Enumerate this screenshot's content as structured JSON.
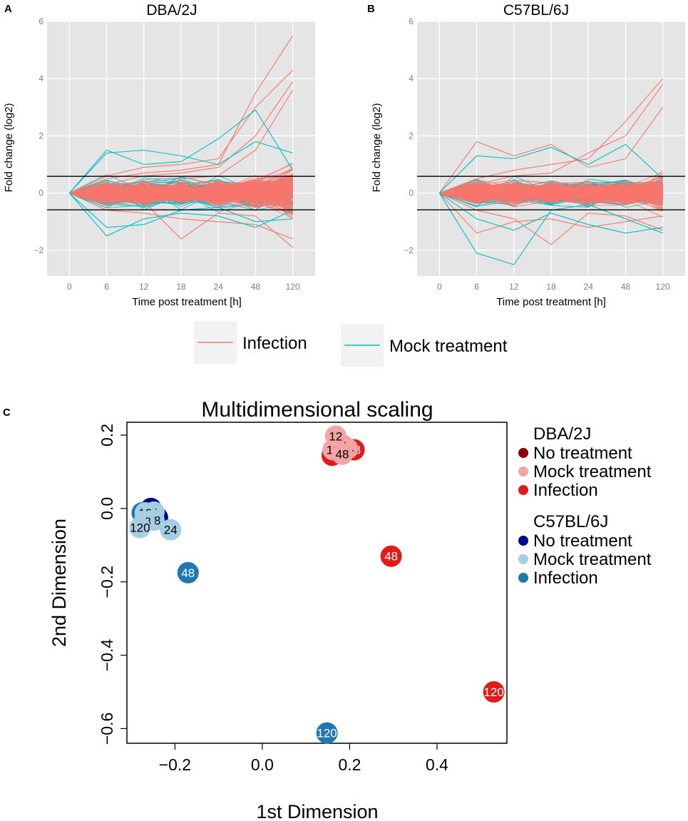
{
  "colors": {
    "infection_line": "#f8766d",
    "mock_line": "#00bfc4",
    "panel_bg": "#e5e5e5",
    "grid": "#ffffff",
    "dba_no": "#8b0000",
    "dba_mock": "#f4a3a6",
    "dba_inf": "#e31a1c",
    "b6_no": "#00008b",
    "b6_mock": "#a6cee3",
    "b6_inf": "#1f78b4"
  },
  "panels": {
    "a": {
      "letter": "A",
      "title": "DBA/2J"
    },
    "b": {
      "letter": "B",
      "title": "C57BL/6J"
    },
    "c": {
      "letter": "C"
    }
  },
  "legend": {
    "infection": "Infection",
    "mock": "Mock treatment"
  },
  "chart_data": [
    {
      "type": "line",
      "title": "DBA/2J",
      "xlabel": "Time post treatment [h]",
      "ylabel": "Fold change (log2)",
      "categories": [
        "0",
        "6",
        "12",
        "18",
        "24",
        "48",
        "120"
      ],
      "ylim": [
        -2.9,
        6
      ],
      "yticks": [
        -2,
        0,
        2,
        4,
        6
      ],
      "yticklabels": [
        "−2",
        "0",
        "2",
        "4",
        "6"
      ],
      "threshold_lines": [
        0.585,
        -0.585
      ],
      "seed": 11,
      "series_defs": [
        {
          "name": "Mock treatment",
          "color_key": "mock_line",
          "count": 110,
          "spread": [
            0.75,
            0.7,
            0.7,
            0.7,
            0.7,
            0.75
          ]
        },
        {
          "name": "Infection",
          "color_key": "infection_line",
          "count": 170,
          "spread": [
            0.55,
            0.55,
            0.55,
            0.6,
            0.75,
            1.3
          ]
        }
      ],
      "highlight_series": [
        {
          "series": "Infection",
          "values": [
            0,
            0.5,
            0.7,
            0.8,
            1.0,
            3.5,
            5.5
          ]
        },
        {
          "series": "Infection",
          "values": [
            0,
            0.6,
            0.9,
            1.0,
            1.2,
            3.0,
            4.3
          ]
        },
        {
          "series": "Infection",
          "values": [
            0,
            0.3,
            0.6,
            0.7,
            0.9,
            2.0,
            3.9
          ]
        },
        {
          "series": "Infection",
          "values": [
            0,
            0.2,
            0.4,
            0.5,
            0.6,
            1.5,
            3.6
          ]
        },
        {
          "series": "Infection",
          "values": [
            0,
            -0.4,
            -0.3,
            -1.6,
            -0.7,
            -0.8,
            -1.9
          ]
        },
        {
          "series": "Infection",
          "values": [
            0,
            -0.6,
            -0.7,
            -0.9,
            -1.0,
            -1.1,
            -1.6
          ]
        },
        {
          "series": "Mock treatment",
          "values": [
            0,
            1.5,
            1.0,
            1.1,
            1.9,
            2.9,
            0.8
          ]
        },
        {
          "series": "Mock treatment",
          "values": [
            0,
            1.4,
            1.5,
            1.3,
            1.0,
            1.8,
            1.4
          ]
        },
        {
          "series": "Mock treatment",
          "values": [
            0,
            -1.5,
            -0.9,
            -0.7,
            -0.8,
            -1.2,
            -0.6
          ]
        },
        {
          "series": "Mock treatment",
          "values": [
            0,
            -1.2,
            -1.1,
            -0.6,
            -0.5,
            -1.0,
            -0.9
          ]
        }
      ]
    },
    {
      "type": "line",
      "title": "C57BL/6J",
      "xlabel": "Time post treatment [h]",
      "ylabel": "Fold change (log2)",
      "categories": [
        "0",
        "6",
        "12",
        "18",
        "24",
        "48",
        "120"
      ],
      "ylim": [
        -2.9,
        6
      ],
      "yticks": [
        -2,
        0,
        2,
        4,
        6
      ],
      "yticklabels": [
        "−2",
        "0",
        "2",
        "4",
        "6"
      ],
      "threshold_lines": [
        0.585,
        -0.585
      ],
      "seed": 29,
      "series_defs": [
        {
          "name": "Mock treatment",
          "color_key": "mock_line",
          "count": 110,
          "spread": [
            0.65,
            0.65,
            0.6,
            0.6,
            0.65,
            0.6
          ]
        },
        {
          "name": "Infection",
          "color_key": "infection_line",
          "count": 170,
          "spread": [
            0.55,
            0.55,
            0.55,
            0.55,
            0.55,
            1.0
          ]
        }
      ],
      "highlight_series": [
        {
          "series": "Infection",
          "values": [
            0,
            0.5,
            0.8,
            1.0,
            1.2,
            2.5,
            4.0
          ]
        },
        {
          "series": "Infection",
          "values": [
            0,
            0.3,
            0.6,
            0.7,
            1.4,
            2.0,
            3.8
          ]
        },
        {
          "series": "Infection",
          "values": [
            0,
            1.8,
            1.3,
            1.7,
            0.9,
            1.2,
            3.0
          ]
        },
        {
          "series": "Infection",
          "values": [
            0,
            -0.6,
            -0.9,
            -1.8,
            -0.7,
            -0.8,
            -1.3
          ]
        },
        {
          "series": "Infection",
          "values": [
            0,
            -1.4,
            -1.0,
            -0.9,
            -1.2,
            -1.0,
            -0.8
          ]
        },
        {
          "series": "Mock treatment",
          "values": [
            0,
            -2.1,
            -2.5,
            -0.6,
            -0.4,
            -0.9,
            -1.4
          ]
        },
        {
          "series": "Mock treatment",
          "values": [
            0,
            1.3,
            1.2,
            1.6,
            1.0,
            1.7,
            0.5
          ]
        },
        {
          "series": "Mock treatment",
          "values": [
            0,
            -0.9,
            -1.3,
            -0.7,
            -1.1,
            -1.4,
            -1.2
          ]
        }
      ]
    },
    {
      "type": "scatter",
      "title": "Multidimensional scaling",
      "xlabel": "1st Dimension",
      "ylabel": "2nd Dimension",
      "xlim": [
        -0.31,
        0.56
      ],
      "ylim": [
        -0.64,
        0.235
      ],
      "xticks": [
        -0.2,
        0.0,
        0.2,
        0.4
      ],
      "xticklabels": [
        "−0.2",
        "0.0",
        "0.2",
        "0.4"
      ],
      "yticks": [
        0.2,
        0.0,
        -0.2,
        -0.4,
        -0.6
      ],
      "yticklabels": [
        "0.2",
        "0.0",
        "−0.2",
        "−0.4",
        "−0.6"
      ],
      "legend": [
        {
          "header": "DBA/2J",
          "items": [
            {
              "label": "No treatment",
              "color_key": "dba_no"
            },
            {
              "label": "Mock treatment",
              "color_key": "dba_mock"
            },
            {
              "label": "Infection",
              "color_key": "dba_inf"
            }
          ]
        },
        {
          "header": "C57BL/6J",
          "items": [
            {
              "label": "No treatment",
              "color_key": "b6_no"
            },
            {
              "label": "Mock treatment",
              "color_key": "b6_mock"
            },
            {
              "label": "Infection",
              "color_key": "b6_inf"
            }
          ]
        }
      ],
      "points": [
        {
          "x": 0.17,
          "y": 0.165,
          "label": "",
          "color_key": "dba_no",
          "text": "#000000"
        },
        {
          "x": 0.18,
          "y": 0.17,
          "label": "",
          "color_key": "dba_no",
          "text": "#000000"
        },
        {
          "x": 0.16,
          "y": 0.145,
          "label": "",
          "color_key": "dba_inf",
          "text": "#000000"
        },
        {
          "x": 0.21,
          "y": 0.16,
          "label": "48",
          "color_key": "dba_inf",
          "text": "#ffffff"
        },
        {
          "x": 0.195,
          "y": 0.163,
          "label": "24",
          "color_key": "dba_mock",
          "text": "#000000"
        },
        {
          "x": 0.185,
          "y": 0.172,
          "label": "6",
          "color_key": "dba_mock",
          "text": "#000000"
        },
        {
          "x": 0.162,
          "y": 0.16,
          "label": "12",
          "color_key": "dba_mock",
          "text": "#000000"
        },
        {
          "x": 0.183,
          "y": 0.148,
          "label": "48",
          "color_key": "dba_mock",
          "text": "#000000"
        },
        {
          "x": 0.168,
          "y": 0.197,
          "label": "12",
          "color_key": "dba_mock",
          "text": "#000000"
        },
        {
          "x": 0.295,
          "y": -0.13,
          "label": "48",
          "color_key": "dba_inf",
          "text": "#ffffff"
        },
        {
          "x": 0.53,
          "y": -0.5,
          "label": "120",
          "color_key": "dba_inf",
          "text": "#ffffff"
        },
        {
          "x": -0.255,
          "y": -0.0,
          "label": "",
          "color_key": "b6_no",
          "text": "#ffffff"
        },
        {
          "x": -0.24,
          "y": -0.025,
          "label": "",
          "color_key": "b6_no",
          "text": "#ffffff"
        },
        {
          "x": -0.275,
          "y": -0.012,
          "label": "",
          "color_key": "b6_inf",
          "text": "#ffffff"
        },
        {
          "x": -0.248,
          "y": -0.01,
          "label": "6",
          "color_key": "b6_mock",
          "text": "#000000"
        },
        {
          "x": -0.268,
          "y": -0.012,
          "label": "12",
          "color_key": "b6_mock",
          "text": "#000000"
        },
        {
          "x": -0.248,
          "y": -0.032,
          "label": "48",
          "color_key": "b6_mock",
          "text": "#000000"
        },
        {
          "x": -0.27,
          "y": -0.035,
          "label": "48",
          "color_key": "b6_mock",
          "text": "#000000"
        },
        {
          "x": -0.28,
          "y": -0.052,
          "label": "120",
          "color_key": "b6_mock",
          "text": "#000000"
        },
        {
          "x": -0.21,
          "y": -0.058,
          "label": "24",
          "color_key": "b6_mock",
          "text": "#000000"
        },
        {
          "x": -0.17,
          "y": -0.175,
          "label": "48",
          "color_key": "b6_inf",
          "text": "#ffffff"
        },
        {
          "x": 0.148,
          "y": -0.612,
          "label": "120",
          "color_key": "b6_inf",
          "text": "#ffffff"
        }
      ]
    }
  ]
}
